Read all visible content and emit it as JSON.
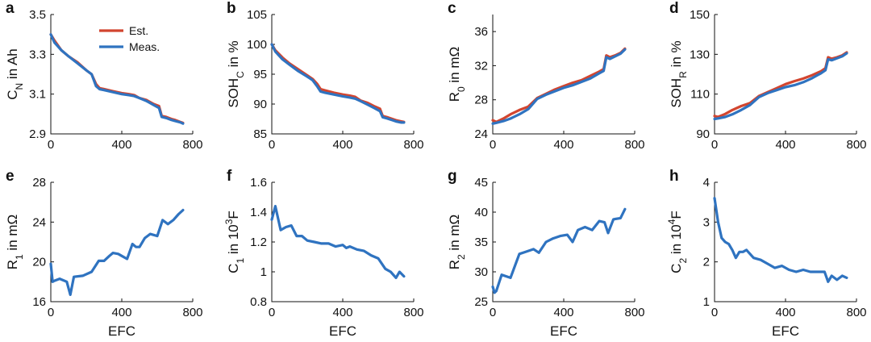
{
  "colors": {
    "est": "#d2452f",
    "meas": "#2f73c0",
    "axis": "#111111"
  },
  "chart_data": [
    {
      "panel": "a",
      "type": "line",
      "xlabel": "",
      "ylabel": "C_N in Ah",
      "ylabel_parts": [
        {
          "t": "C"
        },
        {
          "t": "N",
          "sub": true
        },
        {
          "t": " in Ah"
        }
      ],
      "xlim": [
        0,
        800
      ],
      "ylim": [
        2.9,
        3.5
      ],
      "xticks": [
        0,
        400,
        800
      ],
      "xtick_labels": [
        "0",
        "400",
        "800"
      ],
      "yticks": [
        2.9,
        3.1,
        3.3,
        3.5
      ],
      "ytick_labels": [
        "2.9",
        "3.1",
        "3.3",
        "3.5"
      ],
      "legend": {
        "position": "top-right",
        "entries": [
          "Est.",
          "Meas."
        ]
      },
      "series": [
        {
          "name": "Est.",
          "x": [
            0,
            20,
            60,
            100,
            150,
            200,
            230,
            255,
            275,
            300,
            350,
            400,
            440,
            470,
            500,
            540,
            580,
            610,
            625,
            650,
            680,
            700,
            730,
            745
          ],
          "y": [
            3.4,
            3.37,
            3.32,
            3.29,
            3.26,
            3.22,
            3.2,
            3.15,
            3.13,
            3.125,
            3.115,
            3.105,
            3.1,
            3.095,
            3.08,
            3.07,
            3.05,
            3.04,
            2.99,
            2.985,
            2.975,
            2.97,
            2.96,
            2.955
          ]
        },
        {
          "name": "Meas.",
          "x": [
            0,
            20,
            60,
            100,
            150,
            200,
            230,
            255,
            275,
            300,
            350,
            400,
            440,
            470,
            500,
            540,
            580,
            610,
            625,
            650,
            680,
            700,
            730,
            745
          ],
          "y": [
            3.4,
            3.36,
            3.32,
            3.29,
            3.255,
            3.22,
            3.2,
            3.14,
            3.125,
            3.12,
            3.11,
            3.1,
            3.095,
            3.09,
            3.08,
            3.065,
            3.045,
            3.03,
            2.985,
            2.98,
            2.97,
            2.965,
            2.958,
            2.952
          ]
        }
      ]
    },
    {
      "panel": "b",
      "type": "line",
      "xlabel": "",
      "ylabel": "SOH_C in %",
      "ylabel_parts": [
        {
          "t": "SOH"
        },
        {
          "t": "C",
          "sub": true
        },
        {
          "t": " in %"
        }
      ],
      "xlim": [
        0,
        800
      ],
      "ylim": [
        85,
        105
      ],
      "xticks": [
        0,
        400,
        800
      ],
      "xtick_labels": [
        "0",
        "400",
        "800"
      ],
      "yticks": [
        85,
        90,
        95,
        100,
        105
      ],
      "ytick_labels": [
        "85",
        "90",
        "95",
        "100",
        "105"
      ],
      "series": [
        {
          "name": "Est.",
          "x": [
            0,
            20,
            60,
            100,
            150,
            200,
            230,
            255,
            275,
            300,
            350,
            400,
            440,
            470,
            500,
            540,
            580,
            610,
            625,
            650,
            680,
            700,
            730,
            745
          ],
          "y": [
            100,
            99.0,
            97.8,
            96.8,
            95.8,
            94.8,
            94.2,
            93.4,
            92.5,
            92.3,
            91.9,
            91.6,
            91.4,
            91.2,
            90.6,
            90.2,
            89.6,
            89.2,
            88.0,
            87.8,
            87.5,
            87.3,
            87.1,
            87.0
          ]
        },
        {
          "name": "Meas.",
          "x": [
            0,
            20,
            60,
            100,
            150,
            200,
            230,
            255,
            275,
            300,
            350,
            400,
            440,
            470,
            500,
            540,
            580,
            610,
            625,
            650,
            680,
            700,
            730,
            745
          ],
          "y": [
            100,
            98.8,
            97.5,
            96.6,
            95.5,
            94.6,
            94.0,
            93.0,
            92.1,
            91.9,
            91.6,
            91.3,
            91.1,
            90.9,
            90.5,
            89.9,
            89.3,
            88.8,
            87.8,
            87.6,
            87.3,
            87.1,
            86.9,
            86.9
          ]
        }
      ]
    },
    {
      "panel": "c",
      "type": "line",
      "xlabel": "",
      "ylabel": "R_0 in mΩ",
      "ylabel_parts": [
        {
          "t": "R"
        },
        {
          "t": "0",
          "sub": true
        },
        {
          "t": " in mΩ"
        }
      ],
      "xlim": [
        0,
        800
      ],
      "ylim": [
        24,
        38
      ],
      "xticks": [
        0,
        400,
        800
      ],
      "xtick_labels": [
        "0",
        "400",
        "800"
      ],
      "yticks": [
        24,
        28,
        32,
        36
      ],
      "ytick_labels": [
        "24",
        "28",
        "32",
        "36"
      ],
      "series": [
        {
          "name": "Est.",
          "x": [
            0,
            20,
            60,
            100,
            150,
            200,
            250,
            300,
            350,
            400,
            450,
            500,
            550,
            600,
            625,
            640,
            660,
            690,
            720,
            745
          ],
          "y": [
            25.6,
            25.4,
            25.8,
            26.3,
            26.8,
            27.2,
            28.2,
            28.7,
            29.2,
            29.6,
            30.0,
            30.3,
            30.8,
            31.3,
            31.6,
            33.2,
            33.0,
            33.2,
            33.5,
            34.0
          ]
        },
        {
          "name": "Meas.",
          "x": [
            0,
            20,
            60,
            100,
            150,
            200,
            250,
            300,
            350,
            400,
            450,
            500,
            550,
            600,
            625,
            640,
            660,
            690,
            720,
            745
          ],
          "y": [
            25.2,
            25.3,
            25.5,
            25.8,
            26.3,
            26.9,
            28.1,
            28.6,
            29.0,
            29.4,
            29.7,
            30.1,
            30.5,
            31.1,
            31.4,
            33.0,
            32.8,
            33.1,
            33.4,
            33.9
          ]
        }
      ]
    },
    {
      "panel": "d",
      "type": "line",
      "xlabel": "",
      "ylabel": "SOH_R in %",
      "ylabel_parts": [
        {
          "t": "SOH"
        },
        {
          "t": "R",
          "sub": true
        },
        {
          "t": " in %"
        }
      ],
      "xlim": [
        0,
        800
      ],
      "ylim": [
        90,
        150
      ],
      "xticks": [
        0,
        400,
        800
      ],
      "xtick_labels": [
        "0",
        "400",
        "800"
      ],
      "yticks": [
        90,
        110,
        130,
        150
      ],
      "ytick_labels": [
        "90",
        "110",
        "130",
        "150"
      ],
      "series": [
        {
          "name": "Est.",
          "x": [
            0,
            20,
            60,
            100,
            150,
            200,
            250,
            300,
            350,
            400,
            450,
            500,
            550,
            600,
            625,
            640,
            660,
            690,
            720,
            745
          ],
          "y": [
            99,
            98.5,
            100,
            102,
            104,
            105.5,
            109,
            111,
            113,
            115,
            116.5,
            117.8,
            119.5,
            121.5,
            123,
            128.5,
            127.8,
            128.5,
            129.5,
            131
          ]
        },
        {
          "name": "Meas.",
          "x": [
            0,
            20,
            60,
            100,
            150,
            200,
            250,
            300,
            350,
            400,
            450,
            500,
            550,
            600,
            625,
            640,
            660,
            690,
            720,
            745
          ],
          "y": [
            97.5,
            97.8,
            98.5,
            99.8,
            102,
            104.5,
            108.5,
            110.5,
            112,
            113.5,
            114.5,
            116,
            118,
            120.5,
            122,
            127.5,
            127,
            128,
            129,
            130.5
          ]
        }
      ]
    },
    {
      "panel": "e",
      "type": "line",
      "xlabel": "EFC",
      "ylabel": "R_1 in mΩ",
      "ylabel_parts": [
        {
          "t": "R"
        },
        {
          "t": "1",
          "sub": true
        },
        {
          "t": " in mΩ"
        }
      ],
      "xlim": [
        0,
        800
      ],
      "ylim": [
        16,
        28
      ],
      "xticks": [
        0,
        400,
        800
      ],
      "xtick_labels": [
        "0",
        "400",
        "800"
      ],
      "yticks": [
        16,
        20,
        24,
        28
      ],
      "ytick_labels": [
        "16",
        "20",
        "24",
        "28"
      ],
      "series": [
        {
          "name": "Meas.",
          "x": [
            0,
            10,
            20,
            50,
            90,
            110,
            130,
            180,
            230,
            270,
            300,
            330,
            350,
            380,
            400,
            430,
            460,
            480,
            500,
            530,
            560,
            600,
            630,
            660,
            690,
            720,
            745
          ],
          "y": [
            19.8,
            18.0,
            18.1,
            18.3,
            18.0,
            16.7,
            18.5,
            18.6,
            19.0,
            20.1,
            20.1,
            20.6,
            20.9,
            20.8,
            20.6,
            20.3,
            21.8,
            21.5,
            21.5,
            22.4,
            22.8,
            22.6,
            24.2,
            23.8,
            24.2,
            24.8,
            25.2
          ]
        }
      ]
    },
    {
      "panel": "f",
      "type": "line",
      "xlabel": "EFC",
      "ylabel": "C_1 in 10^3F",
      "ylabel_parts": [
        {
          "t": "C"
        },
        {
          "t": "1",
          "sub": true
        },
        {
          "t": " in 10"
        },
        {
          "t": "3",
          "sup": true
        },
        {
          "t": "F"
        }
      ],
      "xlim": [
        0,
        800
      ],
      "ylim": [
        0.8,
        1.6
      ],
      "xticks": [
        0,
        400,
        800
      ],
      "xtick_labels": [
        "0",
        "400",
        "800"
      ],
      "yticks": [
        0.8,
        1.0,
        1.2,
        1.4,
        1.6
      ],
      "ytick_labels": [
        "0.8",
        "1",
        "1.2",
        "1.4",
        "1.6"
      ],
      "series": [
        {
          "name": "Meas.",
          "x": [
            0,
            20,
            50,
            80,
            110,
            140,
            170,
            200,
            240,
            280,
            320,
            360,
            400,
            420,
            440,
            480,
            520,
            560,
            600,
            640,
            670,
            700,
            720,
            745
          ],
          "y": [
            1.35,
            1.44,
            1.28,
            1.3,
            1.31,
            1.24,
            1.24,
            1.21,
            1.2,
            1.19,
            1.19,
            1.17,
            1.18,
            1.16,
            1.17,
            1.15,
            1.14,
            1.11,
            1.09,
            1.02,
            1.0,
            0.96,
            1.0,
            0.97
          ]
        }
      ]
    },
    {
      "panel": "g",
      "type": "line",
      "xlabel": "EFC",
      "ylabel": "R_2 in mΩ",
      "ylabel_parts": [
        {
          "t": "R"
        },
        {
          "t": "2",
          "sub": true
        },
        {
          "t": " in mΩ"
        }
      ],
      "xlim": [
        0,
        800
      ],
      "ylim": [
        25,
        45
      ],
      "xticks": [
        0,
        400,
        800
      ],
      "xtick_labels": [
        "0",
        "400",
        "800"
      ],
      "yticks": [
        25,
        30,
        35,
        40,
        45
      ],
      "ytick_labels": [
        "25",
        "30",
        "35",
        "40",
        "45"
      ],
      "series": [
        {
          "name": "Meas.",
          "x": [
            0,
            10,
            20,
            50,
            100,
            150,
            180,
            230,
            260,
            300,
            340,
            380,
            420,
            450,
            480,
            520,
            560,
            600,
            630,
            650,
            680,
            720,
            745
          ],
          "y": [
            27.5,
            26.5,
            26.8,
            29.5,
            29.0,
            33.0,
            33.3,
            33.8,
            33.2,
            35.0,
            35.6,
            36.0,
            36.2,
            35.0,
            37.0,
            37.5,
            37.0,
            38.5,
            38.3,
            36.5,
            38.8,
            39.0,
            40.5
          ]
        }
      ]
    },
    {
      "panel": "h",
      "type": "line",
      "xlabel": "EFC",
      "ylabel": "C_2 in 10^4F",
      "ylabel_parts": [
        {
          "t": "C"
        },
        {
          "t": "2",
          "sub": true
        },
        {
          "t": " in 10"
        },
        {
          "t": "4",
          "sup": true
        },
        {
          "t": "F"
        }
      ],
      "xlim": [
        0,
        800
      ],
      "ylim": [
        1,
        4
      ],
      "xticks": [
        0,
        400,
        800
      ],
      "xtick_labels": [
        "0",
        "400",
        "800"
      ],
      "yticks": [
        1,
        2,
        3,
        4
      ],
      "ytick_labels": [
        "1",
        "2",
        "3",
        "4"
      ],
      "series": [
        {
          "name": "Meas.",
          "x": [
            0,
            10,
            20,
            40,
            60,
            80,
            100,
            120,
            140,
            160,
            180,
            220,
            260,
            300,
            340,
            380,
            420,
            460,
            500,
            540,
            580,
            620,
            640,
            660,
            690,
            720,
            745
          ],
          "y": [
            3.6,
            3.3,
            3.0,
            2.6,
            2.5,
            2.45,
            2.3,
            2.1,
            2.25,
            2.25,
            2.3,
            2.1,
            2.05,
            1.95,
            1.85,
            1.9,
            1.8,
            1.75,
            1.8,
            1.75,
            1.75,
            1.75,
            1.5,
            1.65,
            1.55,
            1.65,
            1.6
          ]
        }
      ]
    }
  ]
}
